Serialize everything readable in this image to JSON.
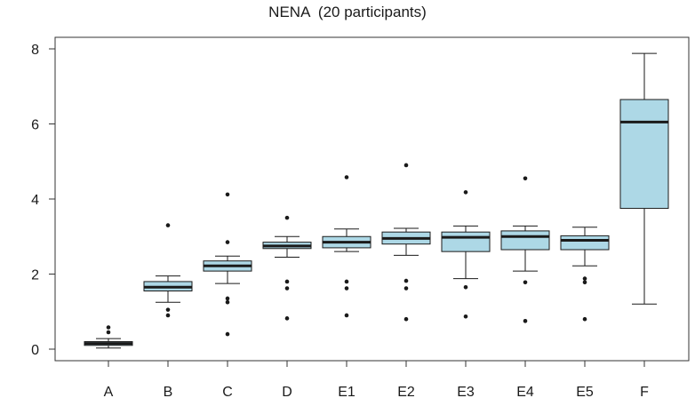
{
  "chart_data": {
    "type": "boxplot",
    "title": "NENA  (20 participants)",
    "xlabel": "",
    "ylabel": "",
    "ylim": [
      0,
      8
    ],
    "yticks": [
      0,
      2,
      4,
      6,
      8
    ],
    "grid": false,
    "legend": "none",
    "box_fill_color": "#add8e6",
    "line_color": "#1a1a1a",
    "categories": [
      "A",
      "B",
      "C",
      "D",
      "E1",
      "E2",
      "E3",
      "E4",
      "E5",
      "F"
    ],
    "boxes": [
      {
        "label": "A",
        "whisker_low": 0.03,
        "q1": 0.1,
        "median": 0.15,
        "q3": 0.2,
        "whisker_high": 0.28,
        "outliers": [
          0.45,
          0.58
        ]
      },
      {
        "label": "B",
        "whisker_low": 1.25,
        "q1": 1.55,
        "median": 1.65,
        "q3": 1.8,
        "whisker_high": 1.95,
        "outliers": [
          3.3,
          1.05,
          0.9
        ]
      },
      {
        "label": "C",
        "whisker_low": 1.75,
        "q1": 2.08,
        "median": 2.22,
        "q3": 2.35,
        "whisker_high": 2.48,
        "outliers": [
          4.12,
          2.85,
          1.35,
          1.25,
          0.4
        ]
      },
      {
        "label": "D",
        "whisker_low": 2.45,
        "q1": 2.68,
        "median": 2.75,
        "q3": 2.85,
        "whisker_high": 3.0,
        "outliers": [
          3.5,
          1.8,
          1.62,
          0.82
        ]
      },
      {
        "label": "E1",
        "whisker_low": 2.6,
        "q1": 2.7,
        "median": 2.85,
        "q3": 3.0,
        "whisker_high": 3.2,
        "outliers": [
          4.58,
          1.8,
          1.62,
          0.9
        ]
      },
      {
        "label": "E2",
        "whisker_low": 2.5,
        "q1": 2.8,
        "median": 2.95,
        "q3": 3.12,
        "whisker_high": 3.22,
        "outliers": [
          4.9,
          1.82,
          1.62,
          0.8
        ]
      },
      {
        "label": "E3",
        "whisker_low": 1.88,
        "q1": 2.6,
        "median": 2.98,
        "q3": 3.12,
        "whisker_high": 3.28,
        "outliers": [
          4.18,
          1.65,
          0.87
        ]
      },
      {
        "label": "E4",
        "whisker_low": 2.08,
        "q1": 2.65,
        "median": 3.0,
        "q3": 3.15,
        "whisker_high": 3.28,
        "outliers": [
          4.55,
          1.78,
          0.75
        ]
      },
      {
        "label": "E5",
        "whisker_low": 2.22,
        "q1": 2.65,
        "median": 2.9,
        "q3": 3.02,
        "whisker_high": 3.25,
        "outliers": [
          1.88,
          1.78,
          0.8
        ]
      },
      {
        "label": "F",
        "whisker_low": 1.2,
        "q1": 3.75,
        "median": 6.05,
        "q3": 6.65,
        "whisker_high": 7.88,
        "outliers": []
      }
    ]
  }
}
